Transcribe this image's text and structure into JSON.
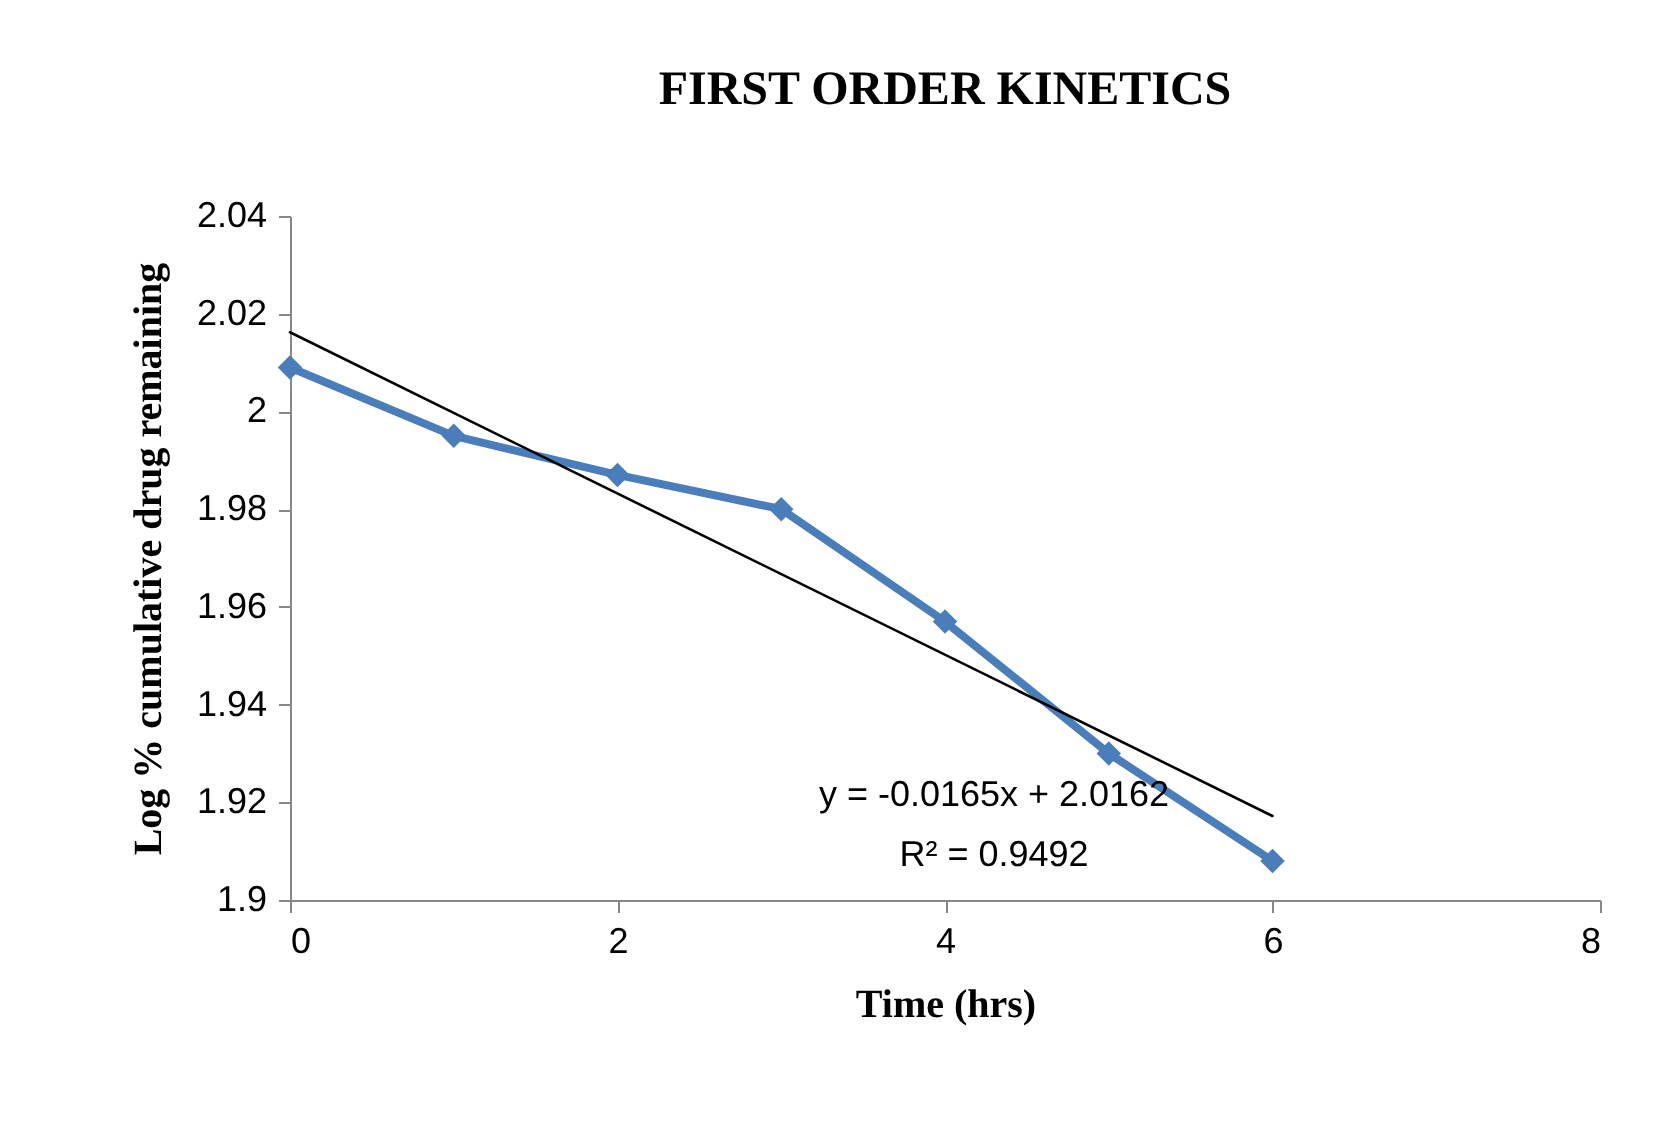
{
  "chart_data": {
    "type": "line",
    "title": "FIRST ORDER KINETICS",
    "xlabel": "Time (hrs)",
    "ylabel": "Log % cumulative drug remaining",
    "x": [
      0,
      1,
      2,
      3,
      4,
      5,
      6
    ],
    "series": [
      {
        "color": "#4a7ebb",
        "marker": "diamond",
        "values": [
          2.009,
          1.995,
          1.987,
          1.98,
          1.957,
          1.93,
          1.908
        ]
      },
      {
        "color": "#000000",
        "marker": "none",
        "x": [
          0,
          6
        ],
        "values": [
          2.0162,
          1.9172
        ]
      }
    ],
    "xlim": [
      0,
      8
    ],
    "xticks": [
      0,
      2,
      4,
      6,
      8
    ],
    "ylim": [
      1.9,
      2.04
    ],
    "yticks": [
      1.9,
      1.92,
      1.94,
      1.96,
      1.98,
      2,
      2.02,
      2.04
    ],
    "grid": false,
    "annotations": [
      "y = -0.0165x + 2.0162",
      "R² = 0.9492"
    ]
  }
}
